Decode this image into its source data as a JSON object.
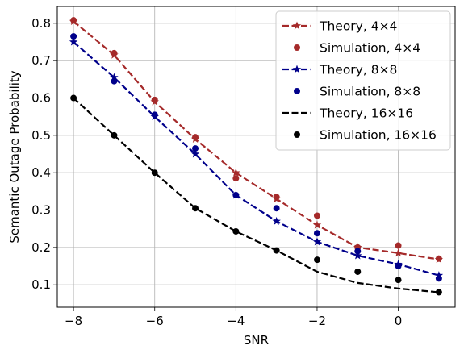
{
  "chart_data": {
    "type": "line",
    "title": "",
    "xlabel": "SNR",
    "ylabel": "Semantic Outage Probability",
    "xlim": [
      -8.4,
      1.4
    ],
    "ylim": [
      0.04,
      0.845
    ],
    "xticks": [
      -8,
      -6,
      -4,
      -2,
      0
    ],
    "xtick_labels": [
      "−8",
      "−6",
      "−4",
      "−2",
      "0"
    ],
    "yticks": [
      0.1,
      0.2,
      0.3,
      0.4,
      0.5,
      0.6,
      0.7,
      0.8
    ],
    "ytick_labels": [
      "0.1",
      "0.2",
      "0.3",
      "0.4",
      "0.5",
      "0.6",
      "0.7",
      "0.8"
    ],
    "grid": true,
    "legend_position": "top-right",
    "series": [
      {
        "name": "Theory, 4×4",
        "kind": "line",
        "style": "dashed",
        "marker": "star",
        "color": "#a52a2a",
        "x": [
          -8,
          -7,
          -6,
          -5,
          -4,
          -3,
          -2,
          -1,
          0,
          1
        ],
        "y": [
          0.805,
          0.715,
          0.59,
          0.49,
          0.4,
          0.33,
          0.26,
          0.2,
          0.185,
          0.168
        ]
      },
      {
        "name": "Simulation, 4×4",
        "kind": "scatter",
        "marker": "circle",
        "color": "#a52a2a",
        "x": [
          -8,
          -7,
          -6,
          -5,
          -4,
          -3,
          -2,
          -1,
          0,
          1
        ],
        "y": [
          0.808,
          0.72,
          0.595,
          0.495,
          0.385,
          0.335,
          0.285,
          0.2,
          0.205,
          0.17
        ]
      },
      {
        "name": "Theory, 8×8",
        "kind": "line",
        "style": "dashed",
        "marker": "star",
        "color": "#00008b",
        "x": [
          -8,
          -7,
          -6,
          -5,
          -4,
          -3,
          -2,
          -1,
          0,
          1
        ],
        "y": [
          0.75,
          0.655,
          0.55,
          0.45,
          0.34,
          0.27,
          0.215,
          0.178,
          0.155,
          0.125
        ]
      },
      {
        "name": "Simulation, 8×8",
        "kind": "scatter",
        "marker": "circle",
        "color": "#00008b",
        "x": [
          -8,
          -7,
          -6,
          -5,
          -4,
          -3,
          -2,
          -1,
          0,
          1
        ],
        "y": [
          0.765,
          0.645,
          0.555,
          0.465,
          0.34,
          0.305,
          0.238,
          0.19,
          0.15,
          0.117
        ]
      },
      {
        "name": "Theory, 16×16",
        "kind": "line",
        "style": "dashed",
        "marker": "none",
        "color": "#000000",
        "x": [
          -8,
          -7,
          -6,
          -5,
          -4,
          -3,
          -2,
          -1,
          0,
          1
        ],
        "y": [
          0.6,
          0.5,
          0.4,
          0.305,
          0.243,
          0.192,
          0.135,
          0.105,
          0.09,
          0.08
        ]
      },
      {
        "name": "Simulation, 16×16",
        "kind": "scatter",
        "marker": "circle",
        "color": "#000000",
        "x": [
          -8,
          -7,
          -6,
          -5,
          -4,
          -3,
          -2,
          -1,
          0,
          1
        ],
        "y": [
          0.6,
          0.5,
          0.4,
          0.305,
          0.243,
          0.192,
          0.167,
          0.135,
          0.113,
          0.08
        ]
      }
    ]
  }
}
